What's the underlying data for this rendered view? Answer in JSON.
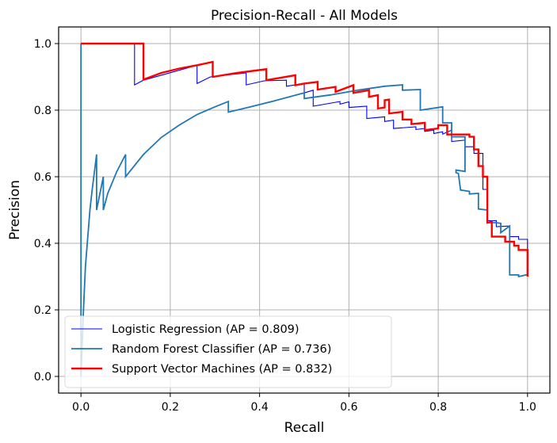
{
  "chart_data": {
    "type": "line",
    "title": "Precision-Recall - All Models",
    "xlabel": "Recall",
    "ylabel": "Precision",
    "xlim": [
      -0.05,
      1.05
    ],
    "ylim": [
      -0.05,
      1.05
    ],
    "xticks": [
      0.0,
      0.2,
      0.4,
      0.6,
      0.8,
      1.0
    ],
    "xtick_labels": [
      "0.0",
      "0.2",
      "0.4",
      "0.6",
      "0.8",
      "1.0"
    ],
    "yticks": [
      0.0,
      0.2,
      0.4,
      0.6,
      0.8,
      1.0
    ],
    "ytick_labels": [
      "0.0",
      "0.2",
      "0.4",
      "0.6",
      "0.8",
      "1.0"
    ],
    "grid": true,
    "legend_position": "lower-left",
    "series": [
      {
        "name": "Logistic Regression (AP = 0.809)",
        "color": "#0000ff",
        "width": "thin",
        "points": [
          [
            0.0,
            1.0
          ],
          [
            0.12,
            1.0
          ],
          [
            0.12,
            0.876
          ],
          [
            0.14,
            0.89
          ],
          [
            0.26,
            0.935
          ],
          [
            0.26,
            0.88
          ],
          [
            0.29,
            0.9
          ],
          [
            0.37,
            0.912
          ],
          [
            0.37,
            0.876
          ],
          [
            0.41,
            0.888
          ],
          [
            0.46,
            0.89
          ],
          [
            0.46,
            0.872
          ],
          [
            0.5,
            0.88
          ],
          [
            0.5,
            0.852
          ],
          [
            0.52,
            0.86
          ],
          [
            0.52,
            0.812
          ],
          [
            0.58,
            0.826
          ],
          [
            0.58,
            0.818
          ],
          [
            0.6,
            0.825
          ],
          [
            0.6,
            0.808
          ],
          [
            0.64,
            0.812
          ],
          [
            0.64,
            0.775
          ],
          [
            0.68,
            0.78
          ],
          [
            0.68,
            0.766
          ],
          [
            0.7,
            0.77
          ],
          [
            0.7,
            0.745
          ],
          [
            0.75,
            0.75
          ],
          [
            0.75,
            0.742
          ],
          [
            0.77,
            0.745
          ],
          [
            0.77,
            0.736
          ],
          [
            0.79,
            0.74
          ],
          [
            0.79,
            0.73
          ],
          [
            0.81,
            0.735
          ],
          [
            0.81,
            0.728
          ],
          [
            0.83,
            0.74
          ],
          [
            0.83,
            0.706
          ],
          [
            0.86,
            0.71
          ],
          [
            0.86,
            0.69
          ],
          [
            0.88,
            0.69
          ],
          [
            0.88,
            0.67
          ],
          [
            0.9,
            0.67
          ],
          [
            0.9,
            0.562
          ],
          [
            0.91,
            0.562
          ],
          [
            0.91,
            0.468
          ],
          [
            0.93,
            0.468
          ],
          [
            0.93,
            0.45
          ],
          [
            0.96,
            0.452
          ],
          [
            0.96,
            0.42
          ],
          [
            0.98,
            0.42
          ],
          [
            0.98,
            0.412
          ],
          [
            1.0,
            0.412
          ],
          [
            1.0,
            0.38
          ]
        ]
      },
      {
        "name": "Random Forest Classifier (AP = 0.736)",
        "color": "#1f77b4",
        "width": "medium",
        "points": [
          [
            0.0,
            1.0
          ],
          [
            0.0,
            0.0
          ],
          [
            0.005,
            0.18
          ],
          [
            0.01,
            0.33
          ],
          [
            0.02,
            0.5
          ],
          [
            0.025,
            0.56
          ],
          [
            0.035,
            0.667
          ],
          [
            0.035,
            0.5
          ],
          [
            0.05,
            0.6
          ],
          [
            0.05,
            0.5
          ],
          [
            0.06,
            0.55
          ],
          [
            0.08,
            0.615
          ],
          [
            0.1,
            0.667
          ],
          [
            0.1,
            0.6
          ],
          [
            0.14,
            0.667
          ],
          [
            0.18,
            0.718
          ],
          [
            0.22,
            0.755
          ],
          [
            0.26,
            0.787
          ],
          [
            0.3,
            0.81
          ],
          [
            0.33,
            0.826
          ],
          [
            0.33,
            0.794
          ],
          [
            0.38,
            0.81
          ],
          [
            0.43,
            0.827
          ],
          [
            0.5,
            0.852
          ],
          [
            0.5,
            0.835
          ],
          [
            0.56,
            0.846
          ],
          [
            0.62,
            0.86
          ],
          [
            0.68,
            0.872
          ],
          [
            0.72,
            0.876
          ],
          [
            0.72,
            0.86
          ],
          [
            0.76,
            0.862
          ],
          [
            0.76,
            0.8
          ],
          [
            0.81,
            0.81
          ],
          [
            0.81,
            0.762
          ],
          [
            0.83,
            0.762
          ],
          [
            0.83,
            0.72
          ],
          [
            0.86,
            0.72
          ],
          [
            0.86,
            0.62
          ],
          [
            0.86,
            0.616
          ],
          [
            0.84,
            0.62
          ],
          [
            0.84,
            0.612
          ],
          [
            0.845,
            0.61
          ],
          [
            0.85,
            0.56
          ],
          [
            0.87,
            0.556
          ],
          [
            0.87,
            0.548
          ],
          [
            0.89,
            0.55
          ],
          [
            0.89,
            0.503
          ],
          [
            0.91,
            0.5
          ],
          [
            0.91,
            0.462
          ],
          [
            0.93,
            0.462
          ],
          [
            0.93,
            0.462
          ],
          [
            0.94,
            0.46
          ],
          [
            0.94,
            0.432
          ],
          [
            0.96,
            0.452
          ],
          [
            0.96,
            0.305
          ],
          [
            0.98,
            0.305
          ],
          [
            0.98,
            0.3
          ],
          [
            1.0,
            0.306
          ]
        ]
      },
      {
        "name": "Support Vector Machines (AP = 0.832)",
        "color": "#ff0000",
        "width": "thick",
        "points": [
          [
            0.0,
            1.0
          ],
          [
            0.14,
            1.0
          ],
          [
            0.14,
            0.892
          ],
          [
            0.18,
            0.912
          ],
          [
            0.22,
            0.925
          ],
          [
            0.26,
            0.935
          ],
          [
            0.295,
            0.945
          ],
          [
            0.295,
            0.9
          ],
          [
            0.35,
            0.912
          ],
          [
            0.415,
            0.923
          ],
          [
            0.415,
            0.89
          ],
          [
            0.48,
            0.905
          ],
          [
            0.48,
            0.875
          ],
          [
            0.5,
            0.88
          ],
          [
            0.5,
            0.88
          ],
          [
            0.53,
            0.885
          ],
          [
            0.53,
            0.862
          ],
          [
            0.57,
            0.87
          ],
          [
            0.57,
            0.855
          ],
          [
            0.61,
            0.875
          ],
          [
            0.61,
            0.852
          ],
          [
            0.645,
            0.86
          ],
          [
            0.645,
            0.84
          ],
          [
            0.665,
            0.845
          ],
          [
            0.665,
            0.805
          ],
          [
            0.68,
            0.808
          ],
          [
            0.68,
            0.83
          ],
          [
            0.69,
            0.832
          ],
          [
            0.69,
            0.79
          ],
          [
            0.72,
            0.795
          ],
          [
            0.72,
            0.772
          ],
          [
            0.74,
            0.772
          ],
          [
            0.74,
            0.758
          ],
          [
            0.77,
            0.762
          ],
          [
            0.77,
            0.74
          ],
          [
            0.8,
            0.745
          ],
          [
            0.8,
            0.755
          ],
          [
            0.82,
            0.755
          ],
          [
            0.82,
            0.727
          ],
          [
            0.87,
            0.727
          ],
          [
            0.87,
            0.72
          ],
          [
            0.88,
            0.72
          ],
          [
            0.88,
            0.682
          ],
          [
            0.89,
            0.682
          ],
          [
            0.89,
            0.632
          ],
          [
            0.9,
            0.632
          ],
          [
            0.9,
            0.6
          ],
          [
            0.91,
            0.6
          ],
          [
            0.91,
            0.462
          ],
          [
            0.92,
            0.465
          ],
          [
            0.92,
            0.42
          ],
          [
            0.95,
            0.42
          ],
          [
            0.95,
            0.405
          ],
          [
            0.97,
            0.405
          ],
          [
            0.97,
            0.393
          ],
          [
            0.98,
            0.393
          ],
          [
            0.98,
            0.38
          ],
          [
            1.0,
            0.38
          ],
          [
            1.0,
            0.3
          ]
        ]
      }
    ]
  }
}
